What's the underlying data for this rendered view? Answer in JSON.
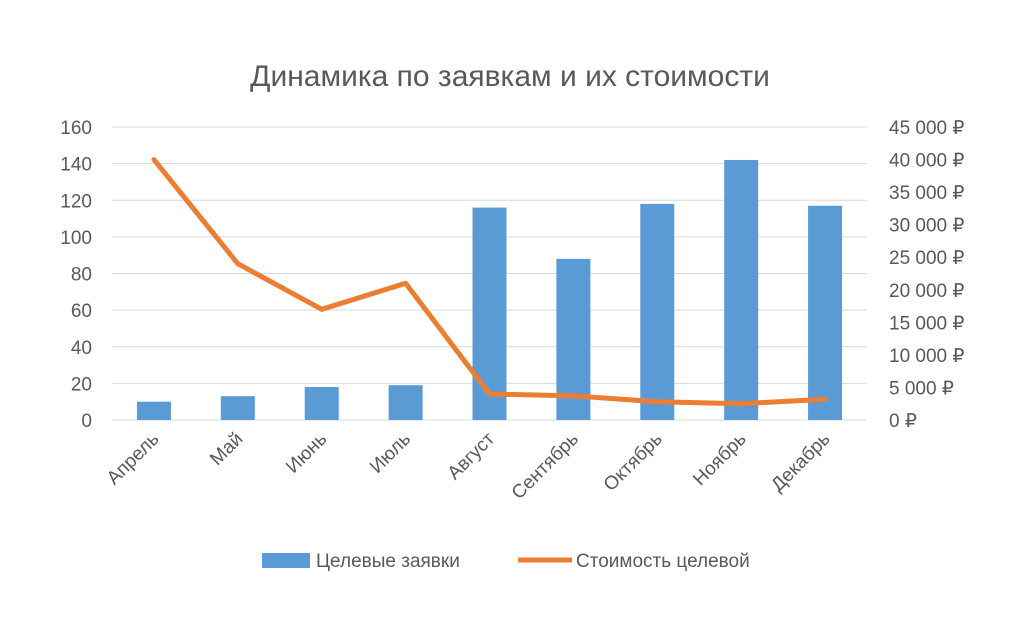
{
  "chart_data": {
    "type": "bar",
    "title": "Динамика по заявкам и их стоимости",
    "categories": [
      "Апрель",
      "Май",
      "Июнь",
      "Июль",
      "Август",
      "Сентябрь",
      "Октябрь",
      "Ноябрь",
      "Декабрь"
    ],
    "series": [
      {
        "name": "Целевые заявки",
        "type": "bar",
        "axis": "left",
        "color": "#5B9BD5",
        "values": [
          10,
          13,
          18,
          19,
          116,
          88,
          118,
          142,
          117
        ]
      },
      {
        "name": "Стоимость целевой",
        "type": "line",
        "axis": "right",
        "color": "#ED7D31",
        "values": [
          40000,
          24000,
          17000,
          21000,
          4000,
          3700,
          2800,
          2500,
          3200
        ]
      }
    ],
    "y_left": {
      "ylim": [
        0,
        160
      ],
      "ticks": [
        "160",
        "140",
        "120",
        "100",
        "80",
        "60",
        "40",
        "20",
        "0"
      ]
    },
    "y_right": {
      "ylim": [
        0,
        45000
      ],
      "ticks": [
        "45 000 ₽",
        "40 000 ₽",
        "35 000 ₽",
        "30 000 ₽",
        "25 000 ₽",
        "20 000 ₽",
        "15 000 ₽",
        "10 000 ₽",
        "5 000 ₽",
        "0 ₽"
      ]
    },
    "grid": true,
    "legend_position": "bottom",
    "colors": {
      "gridline": "#D9D9D9",
      "text": "#595959"
    }
  }
}
